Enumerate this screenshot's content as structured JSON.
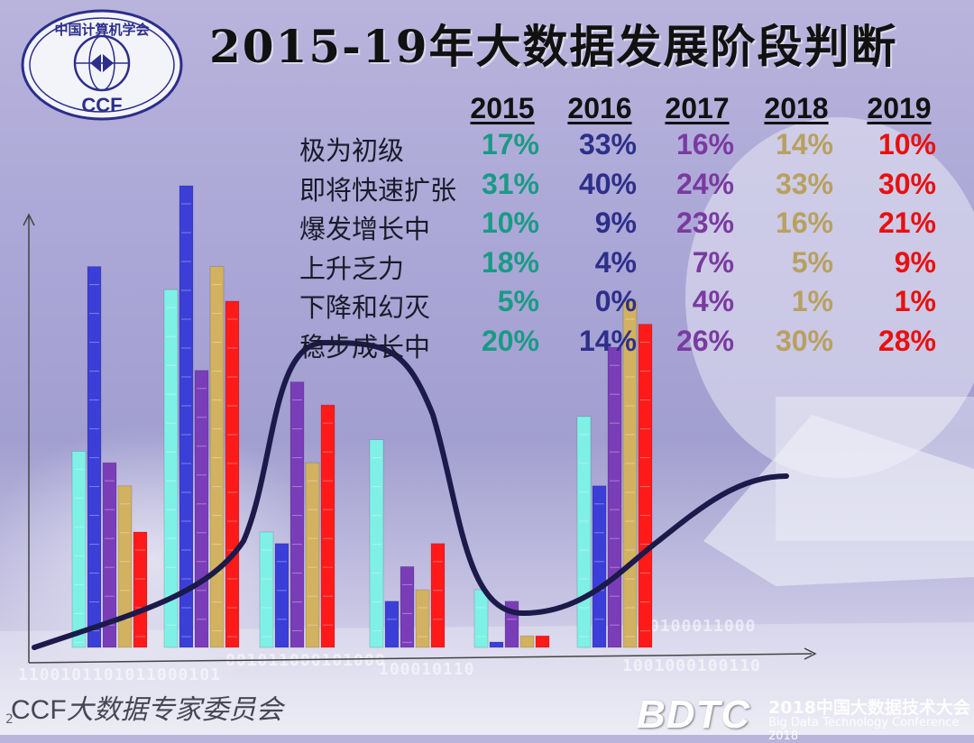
{
  "title": "2015-19年大数据发展阶段判断",
  "logo": {
    "text_top": "中国计算机学会",
    "text_bottom": "CCF"
  },
  "colors": {
    "2015": "#1a9a86",
    "2016": "#2d2f8a",
    "2017": "#7a3aa0",
    "2018": "#b8a060",
    "2019": "#e81010",
    "bar_cyan": "#7ff0e6",
    "bar_blue": "#3b3fd8",
    "bar_purple": "#7a3db8",
    "bar_gold": "#d2b160",
    "bar_red": "#ff1a1a",
    "curve": "#1b1a4a"
  },
  "footer": {
    "ccf": "CCF",
    "org": "大数据专家委员会",
    "page": "2",
    "bdtc": "BDTC",
    "conf_cn": "2018中国大数据技术大会",
    "conf_en": "Big Data Technology Conference 2018"
  },
  "chart_data": {
    "type": "table",
    "columns": [
      "2015",
      "2016",
      "2017",
      "2018",
      "2019"
    ],
    "rows": [
      {
        "label": "极为初级",
        "values": [
          "17%",
          "33%",
          "16%",
          "14%",
          "10%"
        ]
      },
      {
        "label": "即将快速扩张",
        "values": [
          "31%",
          "40%",
          "24%",
          "33%",
          "30%"
        ]
      },
      {
        "label": "爆发增长中",
        "values": [
          "10%",
          "9%",
          "23%",
          "16%",
          "21%"
        ]
      },
      {
        "label": "上升乏力",
        "values": [
          "18%",
          "4%",
          "7%",
          "5%",
          "9%"
        ]
      },
      {
        "label": "下降和幻灭",
        "values": [
          "5%",
          "0%",
          "4%",
          "1%",
          "1%"
        ]
      },
      {
        "label": "稳步成长中",
        "values": [
          "20%",
          "14%",
          "26%",
          "30%",
          "28%"
        ]
      }
    ],
    "bar_groups": [
      [
        17,
        33,
        16,
        14,
        10
      ],
      [
        31,
        40,
        24,
        33,
        30
      ],
      [
        10,
        9,
        23,
        16,
        21
      ],
      [
        18,
        4,
        7,
        5,
        9
      ],
      [
        5,
        0,
        4,
        1,
        1
      ],
      [
        20,
        14,
        26,
        30,
        28
      ]
    ],
    "curve": "hype-cycle"
  }
}
